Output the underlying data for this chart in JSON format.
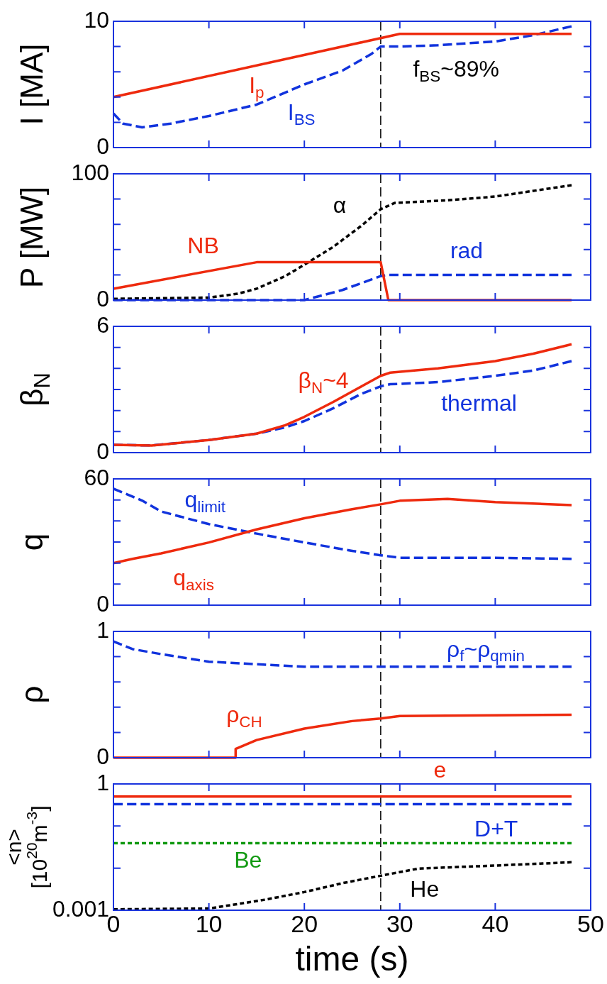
{
  "chart_data": [
    {
      "type": "line",
      "ylabel": "I [MA]",
      "xlim": [
        0,
        50
      ],
      "xticks": [
        0,
        10,
        20,
        30,
        40,
        50
      ],
      "ylim": [
        0,
        10
      ],
      "yticks": [
        0,
        {
          "value": 2,
          "label": null
        },
        {
          "value": 4,
          "label": null
        },
        {
          "value": 6,
          "label": null
        },
        {
          "value": 8,
          "label": null
        },
        10
      ],
      "tick_labels": "y",
      "ref_lines": [
        {
          "axis": "x",
          "value": 28,
          "color": "#000000",
          "line_style": "dashed"
        }
      ],
      "series": [
        {
          "name": "I$_{p}$",
          "color": "#ee2a0e",
          "line_style": "solid",
          "x": [
            0,
            30,
            48
          ],
          "values": [
            4,
            9,
            9
          ]
        },
        {
          "name": "I$_{BS}$",
          "color": "#1133dd",
          "line_style": "dashed",
          "x": [
            0,
            1,
            3,
            6,
            10,
            15,
            20,
            24,
            27,
            28,
            30,
            34,
            40,
            44,
            48
          ],
          "values": [
            2.7,
            1.9,
            1.6,
            1.9,
            2.5,
            3.4,
            5.0,
            6.1,
            7.4,
            8.0,
            8.0,
            8.1,
            8.4,
            8.9,
            9.6
          ]
        }
      ],
      "annotations": [
        "f$_{BS}$~89%"
      ]
    },
    {
      "type": "line",
      "ylabel": "P [MW]",
      "xlim": [
        0,
        50
      ],
      "xticks": [
        0,
        10,
        20,
        30,
        40,
        50
      ],
      "ylim": [
        0,
        100
      ],
      "yticks": [
        0,
        {
          "value": 20,
          "label": null
        },
        {
          "value": 40,
          "label": null
        },
        {
          "value": 60,
          "label": null
        },
        {
          "value": 80,
          "label": null
        },
        100
      ],
      "tick_labels": "y",
      "ref_lines": [
        {
          "axis": "x",
          "value": 28,
          "color": "#000000",
          "line_style": "dashed"
        }
      ],
      "series": [
        {
          "name": "NB",
          "color": "#ee2a0e",
          "line_style": "solid",
          "x": [
            0,
            15,
            28,
            28.8,
            48
          ],
          "values": [
            9,
            30,
            30,
            0,
            0
          ]
        },
        {
          "name": "α",
          "color": "#000000",
          "line_style": "dotted",
          "x": [
            0,
            10,
            13,
            15,
            18,
            20,
            23,
            26,
            28,
            29.5,
            35,
            40,
            48
          ],
          "values": [
            1,
            2,
            5,
            9,
            19,
            28,
            42,
            59,
            72,
            77,
            79,
            82,
            91
          ]
        },
        {
          "name": "rad",
          "color": "#1133dd",
          "line_style": "dashed",
          "x": [
            0,
            20,
            24,
            28,
            28.8,
            48
          ],
          "values": [
            0,
            0,
            8,
            19,
            20,
            20
          ]
        }
      ]
    },
    {
      "type": "line",
      "ylabel": "β$_{N}$",
      "xlim": [
        0,
        50
      ],
      "xticks": [
        0,
        10,
        20,
        30,
        40,
        50
      ],
      "ylim": [
        0,
        6
      ],
      "yticks": [
        0,
        {
          "value": 1,
          "label": null
        },
        {
          "value": 2,
          "label": null
        },
        {
          "value": 3,
          "label": null
        },
        {
          "value": 4,
          "label": null
        },
        {
          "value": 5,
          "label": null
        },
        6
      ],
      "tick_labels": "y",
      "ref_lines": [
        {
          "axis": "x",
          "value": 28,
          "color": "#000000",
          "line_style": "dashed"
        }
      ],
      "series": [
        {
          "name": "β$_{N}$~4",
          "color": "#ee2a0e",
          "line_style": "solid",
          "x": [
            0,
            4,
            10,
            15,
            18,
            20,
            23,
            26,
            28,
            29,
            34,
            40,
            44,
            48
          ],
          "values": [
            0.37,
            0.34,
            0.6,
            0.9,
            1.3,
            1.7,
            2.4,
            3.15,
            3.65,
            3.8,
            4.0,
            4.35,
            4.7,
            5.15
          ]
        },
        {
          "name": "thermal",
          "color": "#1133dd",
          "line_style": "dashed",
          "x": [
            0,
            4,
            10,
            15,
            18,
            20,
            23,
            26,
            28,
            29,
            34,
            40,
            44,
            48
          ],
          "values": [
            0.37,
            0.34,
            0.6,
            0.9,
            1.2,
            1.5,
            2.1,
            2.8,
            3.15,
            3.25,
            3.35,
            3.65,
            3.9,
            4.35
          ]
        }
      ]
    },
    {
      "type": "line",
      "ylabel": "q",
      "xlim": [
        0,
        50
      ],
      "xticks": [
        0,
        10,
        20,
        30,
        40,
        50
      ],
      "ylim": [
        0,
        60
      ],
      "yticks": [
        0,
        {
          "value": 10,
          "label": null
        },
        {
          "value": 20,
          "label": null
        },
        {
          "value": 30,
          "label": null
        },
        {
          "value": 40,
          "label": null
        },
        {
          "value": 50,
          "label": null
        },
        60
      ],
      "tick_labels": "y",
      "ref_lines": [
        {
          "axis": "x",
          "value": 28,
          "color": "#000000",
          "line_style": "dashed"
        }
      ],
      "series": [
        {
          "name": "q$_{axis}$",
          "color": "#ee2a0e",
          "line_style": "solid",
          "x": [
            0,
            2,
            5,
            10,
            15,
            20,
            25,
            28,
            30,
            35,
            40,
            48
          ],
          "values": [
            20,
            22,
            24.6,
            29.8,
            36,
            41.3,
            45.6,
            47.9,
            49.6,
            50.5,
            49,
            47.5
          ]
        },
        {
          "name": "q$_{limit}$",
          "color": "#1133dd",
          "line_style": "dashed",
          "x": [
            0,
            3,
            5,
            10,
            15,
            20,
            25,
            28,
            30,
            40,
            48
          ],
          "values": [
            55.3,
            49.7,
            44.5,
            38.5,
            34,
            29.8,
            25.8,
            23.7,
            22.5,
            22.5,
            22
          ]
        }
      ]
    },
    {
      "type": "line",
      "ylabel": "ρ",
      "xlim": [
        0,
        50
      ],
      "xticks": [
        0,
        10,
        20,
        30,
        40,
        50
      ],
      "ylim": [
        0,
        1
      ],
      "yticks": [
        0,
        {
          "value": 0.2,
          "label": null
        },
        {
          "value": 0.4,
          "label": null
        },
        {
          "value": 0.6,
          "label": null
        },
        {
          "value": 0.8,
          "label": null
        },
        1
      ],
      "tick_labels": "y",
      "ref_lines": [
        {
          "axis": "x",
          "value": 28,
          "color": "#000000",
          "line_style": "dashed"
        }
      ],
      "series": [
        {
          "name": "ρ$_{f}$~ρ$_{qmin}$",
          "color": "#1133dd",
          "line_style": "dashed",
          "x": [
            0,
            2,
            5,
            10,
            15,
            20,
            48
          ],
          "values": [
            0.92,
            0.86,
            0.82,
            0.76,
            0.74,
            0.72,
            0.72
          ]
        },
        {
          "name": "ρ$_{CH}$",
          "color": "#ee2a0e",
          "line_style": "solid",
          "x": [
            0,
            12.8,
            12.8,
            15,
            20,
            25,
            28,
            30,
            48
          ],
          "values": [
            0,
            0,
            0.07,
            0.14,
            0.23,
            0.29,
            0.31,
            0.33,
            0.34
          ]
        }
      ]
    },
    {
      "type": "line",
      "ylabel": "<n>\n[10$^{20}$m$^{-3}$]",
      "xlabel": "time (s)",
      "log": "y",
      "xlim": [
        0,
        50
      ],
      "xticks": [
        0,
        10,
        20,
        30,
        40,
        50
      ],
      "ylim": [
        0.001,
        1
      ],
      "yticks": [
        0.001,
        {
          "value": 0.01,
          "label": null
        },
        {
          "value": 0.1,
          "label": null
        },
        1
      ],
      "ref_lines": [
        {
          "axis": "x",
          "value": 28,
          "color": "#000000",
          "line_style": "dashed"
        }
      ],
      "series": [
        {
          "name": "e",
          "color": "#ee2a0e",
          "line_style": "solid",
          "x": [
            0,
            48
          ],
          "values": [
            0.5,
            0.5
          ]
        },
        {
          "name": "D+T",
          "color": "#1133dd",
          "line_style": "dashed",
          "x": [
            0,
            48
          ],
          "values": [
            0.33,
            0.33
          ]
        },
        {
          "name": "Be",
          "color": "#119911",
          "line_style": "dotted",
          "x": [
            0,
            48
          ],
          "values": [
            0.039,
            0.039
          ]
        },
        {
          "name": "He",
          "color": "#000000",
          "line_style": "dotted",
          "x": [
            0,
            10,
            13,
            16,
            20,
            24,
            28,
            32,
            40,
            48
          ],
          "values": [
            0.00105,
            0.0011,
            0.0014,
            0.0018,
            0.0027,
            0.0044,
            0.0066,
            0.0098,
            0.0115,
            0.0138
          ]
        }
      ]
    }
  ]
}
